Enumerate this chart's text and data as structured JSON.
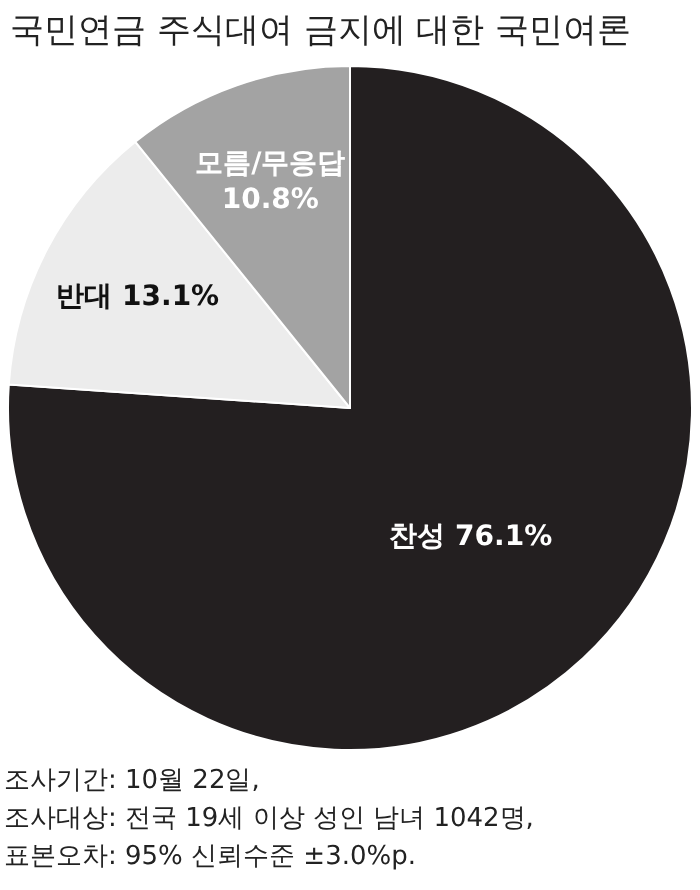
{
  "chart_data": {
    "type": "pie",
    "title": "국민연금 주식대여 금지에 대한 국민여론",
    "categories": [
      "찬성",
      "반대",
      "모름/무응답"
    ],
    "values": [
      76.1,
      13.1,
      10.8
    ],
    "colors": [
      "#231f20",
      "#ececec",
      "#a3a3a3"
    ],
    "value_labels": [
      "76.1%",
      "13.1%",
      "10.8%"
    ],
    "annotations": [
      "조사기간: 10월 22일,",
      "조사대상: 전국 19세 이상 성인 남녀 1042명,",
      "표본오차: 95% 신뢰수준 ±3.0%p."
    ],
    "legend": false
  }
}
